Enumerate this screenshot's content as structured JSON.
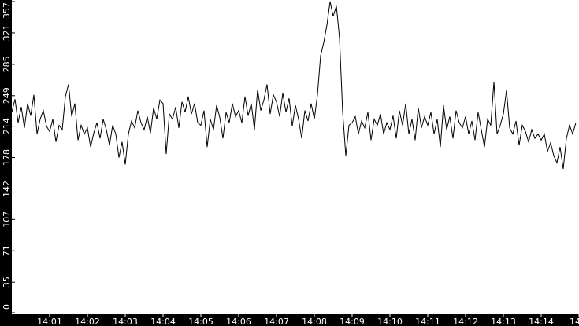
{
  "chart_data": {
    "type": "line",
    "title": "",
    "xlabel": "",
    "ylabel": "",
    "ylim": [
      0,
      357
    ],
    "xlim": [
      "14:00:00",
      "14:15:00"
    ],
    "grid": false,
    "y_ticks": [
      "0",
      "35",
      "71",
      "107",
      "142",
      "178",
      "214",
      "249",
      "285",
      "321",
      "357"
    ],
    "x_ticks": [
      "14:01",
      "14:02",
      "14:03",
      "14:04",
      "14:05",
      "14:06",
      "14:07",
      "14:08",
      "14:09",
      "14:10",
      "14:11",
      "14:12",
      "14:13",
      "14:14",
      "14"
    ],
    "colors": {
      "background": "#ffffff",
      "axis_band": "#000000",
      "line": "#000000",
      "axis_text": "#ffffff"
    },
    "series": [
      {
        "x": [
          "14:00:00",
          "14:00:05",
          "14:00:10",
          "14:00:15",
          "14:00:20",
          "14:00:25",
          "14:00:30",
          "14:00:35",
          "14:00:40",
          "14:00:45",
          "14:00:50",
          "14:00:55",
          "14:01:00",
          "14:01:05",
          "14:01:10",
          "14:01:15",
          "14:01:20",
          "14:01:25",
          "14:01:30",
          "14:01:35",
          "14:01:40",
          "14:01:45",
          "14:01:50",
          "14:01:55",
          "14:02:00",
          "14:02:05",
          "14:02:10",
          "14:02:15",
          "14:02:20",
          "14:02:25",
          "14:02:30",
          "14:02:35",
          "14:02:40",
          "14:02:45",
          "14:02:50",
          "14:02:55",
          "14:03:00",
          "14:03:05",
          "14:03:10",
          "14:03:15",
          "14:03:20",
          "14:03:25",
          "14:03:30",
          "14:03:35",
          "14:03:40",
          "14:03:45",
          "14:03:50",
          "14:03:55",
          "14:04:00",
          "14:04:05",
          "14:04:10",
          "14:04:15",
          "14:04:20",
          "14:04:25",
          "14:04:30",
          "14:04:35",
          "14:04:40",
          "14:04:45",
          "14:04:50",
          "14:04:55",
          "14:05:00",
          "14:05:05",
          "14:05:10",
          "14:05:15",
          "14:05:20",
          "14:05:25",
          "14:05:30",
          "14:05:35",
          "14:05:40",
          "14:05:45",
          "14:05:50",
          "14:05:55",
          "14:06:00",
          "14:06:05",
          "14:06:10",
          "14:06:15",
          "14:06:20",
          "14:06:25",
          "14:06:30",
          "14:06:35",
          "14:06:40",
          "14:06:45",
          "14:06:50",
          "14:06:55",
          "14:07:00",
          "14:07:05",
          "14:07:10",
          "14:07:15",
          "14:07:20",
          "14:07:25",
          "14:07:30",
          "14:07:35",
          "14:07:40",
          "14:07:45",
          "14:07:50",
          "14:07:55",
          "14:08:00",
          "14:08:05",
          "14:08:10",
          "14:08:15",
          "14:08:20",
          "14:08:25",
          "14:08:30",
          "14:08:35",
          "14:08:40",
          "14:08:45",
          "14:08:50",
          "14:08:55",
          "14:09:00",
          "14:09:05",
          "14:09:10",
          "14:09:15",
          "14:09:20",
          "14:09:25",
          "14:09:30",
          "14:09:35",
          "14:09:40",
          "14:09:45",
          "14:09:50",
          "14:09:55",
          "14:10:00",
          "14:10:05",
          "14:10:10",
          "14:10:15",
          "14:10:20",
          "14:10:25",
          "14:10:30",
          "14:10:35",
          "14:10:40",
          "14:10:45",
          "14:10:50",
          "14:10:55",
          "14:11:00",
          "14:11:05",
          "14:11:10",
          "14:11:15",
          "14:11:20",
          "14:11:25",
          "14:11:30",
          "14:11:35",
          "14:11:40",
          "14:11:45",
          "14:11:50",
          "14:11:55",
          "14:12:00",
          "14:12:05",
          "14:12:10",
          "14:12:15",
          "14:12:20",
          "14:12:25",
          "14:12:30",
          "14:12:35",
          "14:12:40",
          "14:12:45",
          "14:12:50",
          "14:12:55",
          "14:13:00",
          "14:13:05",
          "14:13:10",
          "14:13:15",
          "14:13:20",
          "14:13:25",
          "14:13:30",
          "14:13:35",
          "14:13:40",
          "14:13:45",
          "14:13:50",
          "14:13:55",
          "14:14:00",
          "14:14:05",
          "14:14:10",
          "14:14:15",
          "14:14:20",
          "14:14:25",
          "14:14:30",
          "14:14:35",
          "14:14:40",
          "14:14:45",
          "14:14:50",
          "14:14:55"
        ],
        "y": [
          230,
          245,
          218,
          236,
          212,
          240,
          226,
          250,
          205,
          222,
          232,
          214,
          208,
          222,
          196,
          215,
          210,
          248,
          262,
          225,
          240,
          198,
          215,
          205,
          212,
          190,
          206,
          218,
          200,
          222,
          210,
          192,
          215,
          205,
          178,
          196,
          170,
          205,
          220,
          212,
          232,
          218,
          210,
          225,
          206,
          235,
          222,
          244,
          240,
          182,
          228,
          222,
          236,
          212,
          242,
          230,
          248,
          228,
          240,
          218,
          215,
          232,
          190,
          222,
          210,
          238,
          224,
          200,
          230,
          218,
          240,
          225,
          232,
          218,
          248,
          226,
          240,
          210,
          256,
          232,
          244,
          262,
          228,
          250,
          242,
          225,
          252,
          230,
          246,
          214,
          238,
          222,
          200,
          232,
          220,
          240,
          222,
          250,
          295,
          310,
          330,
          357,
          340,
          352,
          315,
          230,
          180,
          215,
          218,
          225,
          205,
          220,
          212,
          230,
          198,
          222,
          215,
          228,
          205,
          218,
          210,
          226,
          200,
          232,
          215,
          240,
          205,
          222,
          198,
          235,
          212,
          225,
          215,
          230,
          205,
          222,
          190,
          238,
          210,
          225,
          200,
          232,
          218,
          212,
          225,
          205,
          220,
          198,
          230,
          210,
          190,
          222,
          215,
          265,
          205,
          215,
          228,
          255,
          212,
          205,
          220,
          192,
          215,
          208,
          196,
          210,
          200,
          205,
          198,
          205,
          185,
          195,
          180,
          172,
          190,
          165,
          200,
          215,
          205,
          218
        ]
      }
    ]
  }
}
